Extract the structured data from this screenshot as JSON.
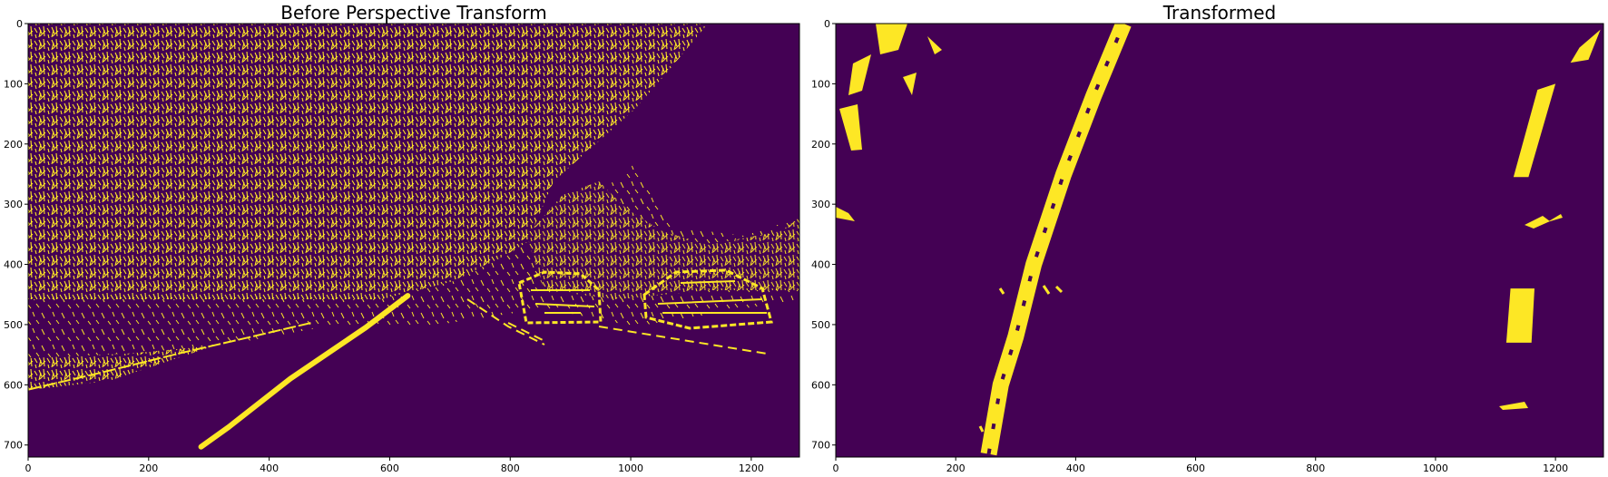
{
  "figure": {
    "background": "#ffffff",
    "image_background": "#440154",
    "mask_color": "#fde725"
  },
  "chart_data": [
    {
      "type": "heatmap",
      "title": "Before Perspective Transform",
      "xlabel": "",
      "ylabel": "",
      "xlim": [
        0,
        1280
      ],
      "ylim": [
        720,
        0
      ],
      "xticks": [
        0,
        200,
        400,
        600,
        800,
        1000,
        1200
      ],
      "yticks": [
        0,
        100,
        200,
        300,
        400,
        500,
        600,
        700
      ],
      "colormap": "viridis (binary 0/1)",
      "features": {
        "lane_line_right": [
          [
            287,
            703
          ],
          [
            333,
            670
          ],
          [
            435,
            590
          ],
          [
            560,
            505
          ],
          [
            630,
            452
          ]
        ],
        "lane_line_left": [
          [
            0,
            608
          ],
          [
            120,
            580
          ],
          [
            250,
            548
          ],
          [
            380,
            518
          ],
          [
            470,
            497
          ]
        ],
        "car_center_box": [
          840,
          425,
          950,
          500
        ],
        "car_right_box": [
          1020,
          410,
          1230,
          505
        ],
        "vegetation_region": [
          [
            0,
            0
          ],
          [
            700,
            0
          ],
          [
            700,
            460
          ],
          [
            0,
            460
          ]
        ]
      }
    },
    {
      "type": "heatmap",
      "title": "Transformed",
      "xlabel": "",
      "ylabel": "",
      "xlim": [
        0,
        1280
      ],
      "ylim": [
        720,
        0
      ],
      "xticks": [
        0,
        200,
        400,
        600,
        800,
        1000,
        1200
      ],
      "yticks": [
        0,
        100,
        200,
        300,
        400,
        500,
        600,
        700
      ],
      "colormap": "viridis (binary 0/1)",
      "features": {
        "lane_line_left": [
          [
            255,
            715
          ],
          [
            275,
            600
          ],
          [
            300,
            520
          ],
          [
            330,
            400
          ],
          [
            380,
            250
          ],
          [
            430,
            120
          ],
          [
            480,
            0
          ]
        ],
        "lane_line_right_segments": [
          [
            [
              1125,
              440
            ],
            [
              1165,
              440
            ],
            [
              1160,
              530
            ],
            [
              1118,
              530
            ]
          ],
          [
            [
              1170,
              110
            ],
            [
              1200,
              100
            ],
            [
              1155,
              255
            ],
            [
              1130,
              255
            ]
          ],
          [
            [
              1240,
              40
            ],
            [
              1275,
              10
            ],
            [
              1255,
              60
            ],
            [
              1225,
              65
            ]
          ]
        ]
      }
    }
  ]
}
